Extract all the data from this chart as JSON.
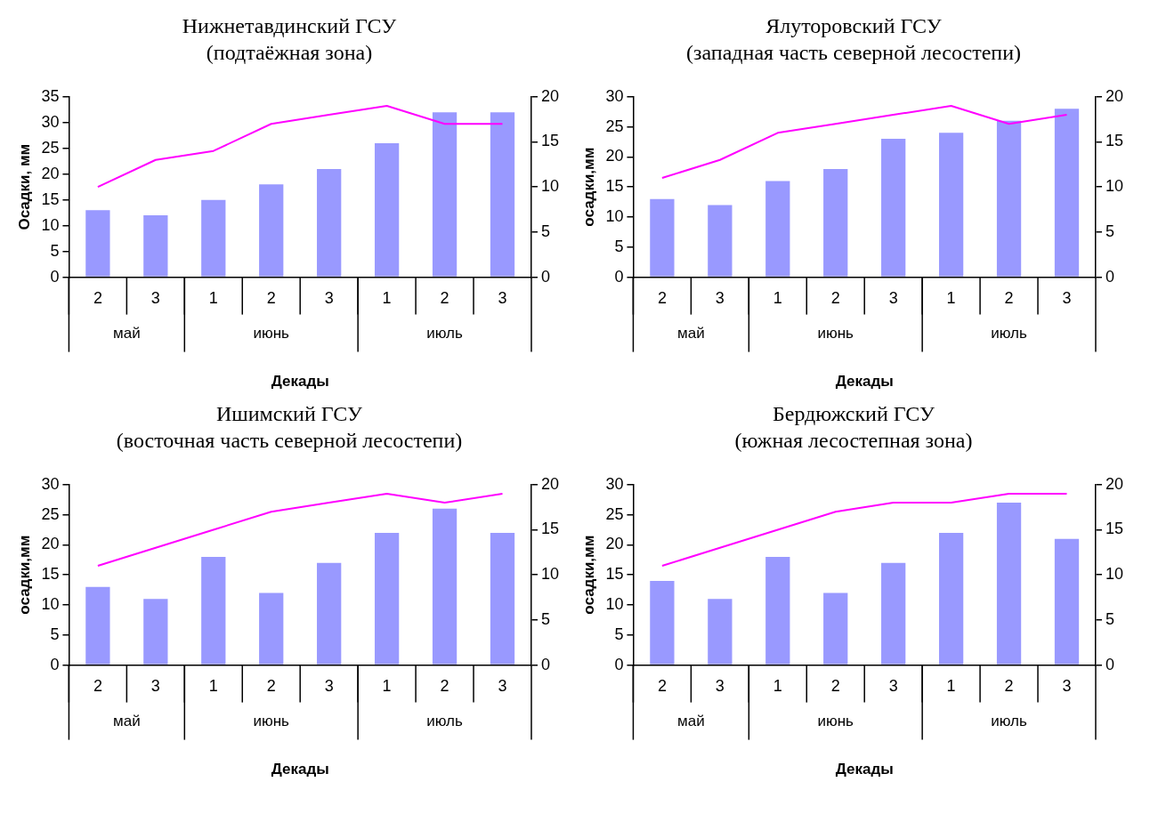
{
  "chart_data": [
    {
      "type": "bar",
      "title": "Нижнетавдинский ГСУ",
      "subtitle": "(подтаёжная зона)",
      "xlabel": "Декады",
      "ylabel": "Осадки, мм",
      "categories": [
        "2",
        "3",
        "1",
        "2",
        "3",
        "1",
        "2",
        "3"
      ],
      "annotations": [
        "май",
        "июнь",
        "июль"
      ],
      "series": [
        {
          "color": "#9999ff",
          "values": [
            13,
            12,
            15,
            18,
            21,
            26,
            32,
            32
          ]
        },
        {
          "type": "line",
          "axis": "y2",
          "color": "#ff00ff",
          "values": [
            10,
            13,
            14,
            17,
            18,
            19,
            17,
            17
          ]
        }
      ],
      "ylim": [
        0,
        35
      ],
      "yticks": [
        0,
        5,
        10,
        15,
        20,
        25,
        30,
        35
      ],
      "y2lim": [
        0,
        20
      ],
      "y2ticks": [
        0,
        5,
        10,
        15,
        20
      ],
      "marker": "none"
    },
    {
      "type": "bar",
      "title": "Ялуторовский ГСУ",
      "subtitle": "(западная часть северной лесостепи)",
      "xlabel": "Декады",
      "ylabel": "осадки,мм",
      "categories": [
        "2",
        "3",
        "1",
        "2",
        "3",
        "1",
        "2",
        "3"
      ],
      "annotations": [
        "май",
        "июнь",
        "июль"
      ],
      "series": [
        {
          "color": "#9999ff",
          "values": [
            13,
            12,
            16,
            18,
            23,
            24,
            26,
            28
          ]
        },
        {
          "type": "line",
          "axis": "y2",
          "color": "#ff00ff",
          "values": [
            11,
            13,
            16,
            17,
            18,
            19,
            17,
            18
          ]
        }
      ],
      "ylim": [
        0,
        30
      ],
      "yticks": [
        0,
        5,
        10,
        15,
        20,
        25,
        30
      ],
      "y2lim": [
        0,
        20
      ],
      "y2ticks": [
        0,
        5,
        10,
        15,
        20
      ],
      "marker": "none"
    },
    {
      "type": "bar",
      "title": "Ишимский ГСУ",
      "subtitle": "(восточная часть северной лесостепи)",
      "xlabel": "Декады",
      "ylabel": "осадки,мм",
      "categories": [
        "2",
        "3",
        "1",
        "2",
        "3",
        "1",
        "2",
        "3"
      ],
      "annotations": [
        "май",
        "июнь",
        "июль"
      ],
      "series": [
        {
          "color": "#9999ff",
          "values": [
            13,
            11,
            18,
            12,
            17,
            22,
            26,
            22
          ]
        },
        {
          "type": "line",
          "axis": "y2",
          "color": "#ff00ff",
          "values": [
            11,
            13,
            15,
            17,
            18,
            19,
            18,
            19
          ]
        }
      ],
      "ylim": [
        0,
        30
      ],
      "yticks": [
        0,
        5,
        10,
        15,
        20,
        25,
        30
      ],
      "y2lim": [
        0,
        20
      ],
      "y2ticks": [
        0,
        5,
        10,
        15,
        20
      ],
      "marker": "none"
    },
    {
      "type": "bar",
      "title": "Бердюжский ГСУ",
      "subtitle": "(южная лесостепная зона)",
      "xlabel": "Декады",
      "ylabel": "осадки,мм",
      "categories": [
        "2",
        "3",
        "1",
        "2",
        "3",
        "1",
        "2",
        "3"
      ],
      "annotations": [
        "май",
        "июнь",
        "июль"
      ],
      "series": [
        {
          "color": "#9999ff",
          "values": [
            14,
            11,
            18,
            12,
            17,
            22,
            27,
            21
          ]
        },
        {
          "type": "line",
          "axis": "y2",
          "color": "#ff00ff",
          "values": [
            11,
            13,
            15,
            17,
            18,
            18,
            19,
            19
          ]
        }
      ],
      "ylim": [
        0,
        30
      ],
      "yticks": [
        0,
        5,
        10,
        15,
        20,
        25,
        30
      ],
      "y2lim": [
        0,
        20
      ],
      "y2ticks": [
        0,
        5,
        10,
        15,
        20
      ],
      "marker": "none"
    }
  ]
}
